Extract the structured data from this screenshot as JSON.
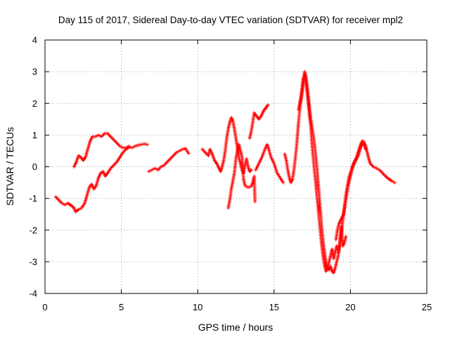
{
  "chart_data": {
    "type": "scatter",
    "title": "Day 115 of 2017, Sidereal Day-to-day VTEC variation (SDTVAR) for receiver mpl2",
    "xlabel": "GPS time / hours",
    "ylabel": "SDTVAR / TECUs",
    "xlim": [
      0,
      25
    ],
    "ylim": [
      -4,
      4
    ],
    "xticks": [
      0,
      5,
      10,
      15,
      20,
      25
    ],
    "yticks": [
      -4,
      -3,
      -2,
      -1,
      0,
      1,
      2,
      3,
      4
    ],
    "grid": true,
    "marker": "+",
    "color": "#ff0000",
    "segments": [
      [
        [
          0.7,
          -0.95
        ],
        [
          0.9,
          -1.05
        ],
        [
          1.1,
          -1.15
        ],
        [
          1.3,
          -1.2
        ],
        [
          1.5,
          -1.15
        ],
        [
          1.7,
          -1.22
        ],
        [
          1.9,
          -1.3
        ],
        [
          2.0,
          -1.42
        ],
        [
          2.2,
          -1.35
        ],
        [
          2.4,
          -1.3
        ],
        [
          2.6,
          -1.15
        ],
        [
          2.75,
          -0.9
        ],
        [
          2.9,
          -0.65
        ],
        [
          3.05,
          -0.55
        ],
        [
          3.2,
          -0.7
        ],
        [
          3.35,
          -0.6
        ],
        [
          3.5,
          -0.35
        ],
        [
          3.65,
          -0.2
        ],
        [
          3.8,
          -0.15
        ],
        [
          3.95,
          -0.3
        ],
        [
          4.1,
          -0.2
        ],
        [
          4.3,
          -0.05
        ],
        [
          4.5,
          0.05
        ],
        [
          4.7,
          0.15
        ],
        [
          4.9,
          0.3
        ],
        [
          5.1,
          0.45
        ],
        [
          5.3,
          0.55
        ],
        [
          5.5,
          0.62
        ],
        [
          5.7,
          0.6
        ],
        [
          5.9,
          0.65
        ],
        [
          6.1,
          0.68
        ],
        [
          6.3,
          0.7
        ],
        [
          6.5,
          0.72
        ],
        [
          6.7,
          0.7
        ]
      ],
      [
        [
          1.9,
          0.0
        ],
        [
          2.05,
          0.15
        ],
        [
          2.2,
          0.35
        ],
        [
          2.35,
          0.3
        ],
        [
          2.5,
          0.2
        ],
        [
          2.65,
          0.3
        ],
        [
          2.8,
          0.55
        ],
        [
          2.95,
          0.8
        ],
        [
          3.1,
          0.95
        ],
        [
          3.3,
          0.95
        ],
        [
          3.5,
          1.0
        ],
        [
          3.7,
          0.95
        ],
        [
          3.9,
          1.05
        ],
        [
          4.1,
          1.05
        ],
        [
          4.3,
          0.95
        ],
        [
          4.5,
          0.85
        ],
        [
          4.7,
          0.75
        ],
        [
          4.9,
          0.65
        ],
        [
          5.1,
          0.6
        ],
        [
          5.3,
          0.6
        ],
        [
          5.5,
          0.65
        ]
      ],
      [
        [
          6.8,
          -0.15
        ],
        [
          7.0,
          -0.1
        ],
        [
          7.2,
          -0.05
        ],
        [
          7.4,
          -0.1
        ],
        [
          7.6,
          0.0
        ],
        [
          7.8,
          0.05
        ],
        [
          8.0,
          0.15
        ],
        [
          8.2,
          0.25
        ],
        [
          8.4,
          0.35
        ],
        [
          8.6,
          0.45
        ],
        [
          8.8,
          0.5
        ],
        [
          9.0,
          0.55
        ],
        [
          9.2,
          0.58
        ],
        [
          9.3,
          0.5
        ],
        [
          9.4,
          0.42
        ]
      ],
      [
        [
          10.3,
          0.55
        ],
        [
          10.5,
          0.45
        ],
        [
          10.7,
          0.35
        ],
        [
          10.8,
          0.55
        ],
        [
          10.95,
          0.4
        ],
        [
          11.1,
          0.2
        ],
        [
          11.25,
          0.1
        ],
        [
          11.4,
          -0.05
        ],
        [
          11.5,
          -0.15
        ],
        [
          11.6,
          0.0
        ],
        [
          11.7,
          0.2
        ],
        [
          11.8,
          0.5
        ],
        [
          11.9,
          0.9
        ],
        [
          12.0,
          1.2
        ],
        [
          12.1,
          1.4
        ],
        [
          12.2,
          1.55
        ],
        [
          12.3,
          1.45
        ],
        [
          12.4,
          1.2
        ],
        [
          12.5,
          0.9
        ],
        [
          12.6,
          0.6
        ],
        [
          12.7,
          0.3
        ],
        [
          12.8,
          0.1
        ],
        [
          12.9,
          -0.1
        ],
        [
          13.0,
          -0.2
        ],
        [
          13.1,
          0.05
        ],
        [
          13.2,
          0.25
        ],
        [
          13.3,
          0.0
        ],
        [
          13.4,
          -0.15
        ],
        [
          13.5,
          -0.1
        ]
      ],
      [
        [
          12.0,
          -1.3
        ],
        [
          12.1,
          -1.05
        ],
        [
          12.2,
          -0.7
        ],
        [
          12.3,
          -0.45
        ],
        [
          12.4,
          -0.2
        ],
        [
          12.5,
          0.25
        ],
        [
          12.6,
          0.5
        ],
        [
          12.7,
          0.7
        ],
        [
          12.8,
          0.5
        ],
        [
          12.9,
          0.3
        ],
        [
          13.0,
          -0.4
        ],
        [
          13.1,
          -0.6
        ],
        [
          13.3,
          -0.65
        ],
        [
          13.5,
          -0.62
        ],
        [
          13.6,
          -0.5
        ],
        [
          13.7,
          -0.3
        ],
        [
          13.75,
          -1.1
        ]
      ],
      [
        [
          13.4,
          0.9
        ],
        [
          13.5,
          1.1
        ],
        [
          13.6,
          1.4
        ],
        [
          13.7,
          1.7
        ],
        [
          13.85,
          1.6
        ],
        [
          14.0,
          1.5
        ],
        [
          14.15,
          1.6
        ],
        [
          14.3,
          1.75
        ],
        [
          14.45,
          1.85
        ],
        [
          14.6,
          1.95
        ]
      ],
      [
        [
          13.8,
          -0.1
        ],
        [
          14.0,
          0.1
        ],
        [
          14.2,
          0.3
        ],
        [
          14.4,
          0.55
        ],
        [
          14.55,
          0.7
        ],
        [
          14.65,
          0.55
        ],
        [
          14.8,
          0.3
        ],
        [
          15.0,
          0.1
        ],
        [
          15.2,
          -0.2
        ],
        [
          15.4,
          -0.35
        ],
        [
          15.6,
          -0.5
        ]
      ],
      [
        [
          15.7,
          0.4
        ],
        [
          15.8,
          0.2
        ],
        [
          15.9,
          -0.1
        ],
        [
          16.0,
          -0.35
        ],
        [
          16.1,
          -0.5
        ],
        [
          16.2,
          -0.4
        ],
        [
          16.3,
          -0.1
        ],
        [
          16.4,
          0.3
        ],
        [
          16.5,
          0.8
        ],
        [
          16.6,
          1.4
        ],
        [
          16.7,
          1.9
        ],
        [
          16.8,
          2.2
        ],
        [
          16.9,
          2.6
        ],
        [
          17.0,
          3.0
        ],
        [
          17.1,
          2.8
        ],
        [
          17.2,
          2.4
        ],
        [
          17.3,
          1.95
        ],
        [
          17.4,
          1.5
        ],
        [
          17.5,
          1.2
        ],
        [
          17.6,
          0.9
        ],
        [
          17.7,
          0.5
        ],
        [
          17.8,
          0.0
        ],
        [
          17.9,
          -0.6
        ],
        [
          18.0,
          -1.2
        ],
        [
          18.1,
          -1.8
        ],
        [
          18.2,
          -2.3
        ],
        [
          18.3,
          -2.7
        ],
        [
          18.4,
          -3.0
        ],
        [
          18.5,
          -3.2
        ],
        [
          18.6,
          -3.25
        ],
        [
          18.7,
          -3.15
        ],
        [
          18.8,
          -3.3
        ],
        [
          18.9,
          -3.35
        ],
        [
          19.0,
          -3.2
        ],
        [
          19.1,
          -3.0
        ],
        [
          19.2,
          -2.8
        ],
        [
          19.3,
          -2.5
        ],
        [
          19.4,
          -2.1
        ],
        [
          19.5,
          -1.7
        ],
        [
          19.6,
          -1.3
        ],
        [
          19.7,
          -0.9
        ],
        [
          19.8,
          -0.6
        ],
        [
          19.9,
          -0.35
        ],
        [
          20.0,
          -0.2
        ],
        [
          20.1,
          -0.05
        ],
        [
          20.2,
          0.1
        ],
        [
          20.3,
          0.2
        ],
        [
          20.4,
          0.3
        ],
        [
          20.5,
          0.45
        ],
        [
          20.6,
          0.6
        ],
        [
          20.7,
          0.75
        ],
        [
          20.8,
          0.82
        ],
        [
          20.9,
          0.78
        ],
        [
          21.0,
          0.65
        ],
        [
          21.1,
          0.45
        ],
        [
          21.2,
          0.25
        ],
        [
          21.3,
          0.1
        ],
        [
          21.5,
          0.0
        ],
        [
          21.7,
          -0.05
        ],
        [
          21.9,
          -0.1
        ],
        [
          22.1,
          -0.2
        ],
        [
          22.3,
          -0.3
        ],
        [
          22.5,
          -0.38
        ],
        [
          22.7,
          -0.45
        ],
        [
          22.9,
          -0.5
        ]
      ],
      [
        [
          16.6,
          1.8
        ],
        [
          16.7,
          2.05
        ],
        [
          16.8,
          2.35
        ],
        [
          16.9,
          2.75
        ],
        [
          17.0,
          2.95
        ],
        [
          17.1,
          2.6
        ],
        [
          17.2,
          2.2
        ],
        [
          17.3,
          1.7
        ],
        [
          17.4,
          1.3
        ],
        [
          17.5,
          0.6
        ],
        [
          17.6,
          0.1
        ],
        [
          17.7,
          -0.4
        ],
        [
          17.8,
          -0.9
        ],
        [
          17.9,
          -1.4
        ],
        [
          18.0,
          -1.9
        ],
        [
          18.1,
          -2.4
        ],
        [
          18.2,
          -2.8
        ],
        [
          18.3,
          -3.1
        ],
        [
          18.4,
          -3.3
        ],
        [
          18.5,
          -3.2
        ],
        [
          18.6,
          -3.0
        ],
        [
          18.7,
          -2.8
        ],
        [
          18.8,
          -2.6
        ],
        [
          18.9,
          -2.9
        ],
        [
          19.0,
          -2.7
        ],
        [
          19.1,
          -2.5
        ],
        [
          19.2,
          -2.7
        ],
        [
          19.3,
          -2.4
        ],
        [
          19.4,
          -1.9
        ],
        [
          19.5,
          -2.5
        ],
        [
          19.6,
          -2.4
        ],
        [
          19.7,
          -2.2
        ]
      ],
      [
        [
          19.05,
          -2.3
        ],
        [
          19.15,
          -2.0
        ],
        [
          19.25,
          -1.8
        ],
        [
          19.35,
          -1.7
        ],
        [
          19.45,
          -1.6
        ],
        [
          19.55,
          -1.5
        ],
        [
          19.65,
          -1.2
        ],
        [
          19.75,
          -0.9
        ],
        [
          19.85,
          -0.6
        ],
        [
          19.95,
          -0.4
        ],
        [
          20.05,
          -0.2
        ],
        [
          20.15,
          0.0
        ],
        [
          20.3,
          0.15
        ],
        [
          20.4,
          0.25
        ],
        [
          20.5,
          0.35
        ],
        [
          20.6,
          0.5
        ],
        [
          20.7,
          0.65
        ],
        [
          20.8,
          0.75
        ],
        [
          20.9,
          0.7
        ],
        [
          21.0,
          0.55
        ]
      ]
    ]
  }
}
